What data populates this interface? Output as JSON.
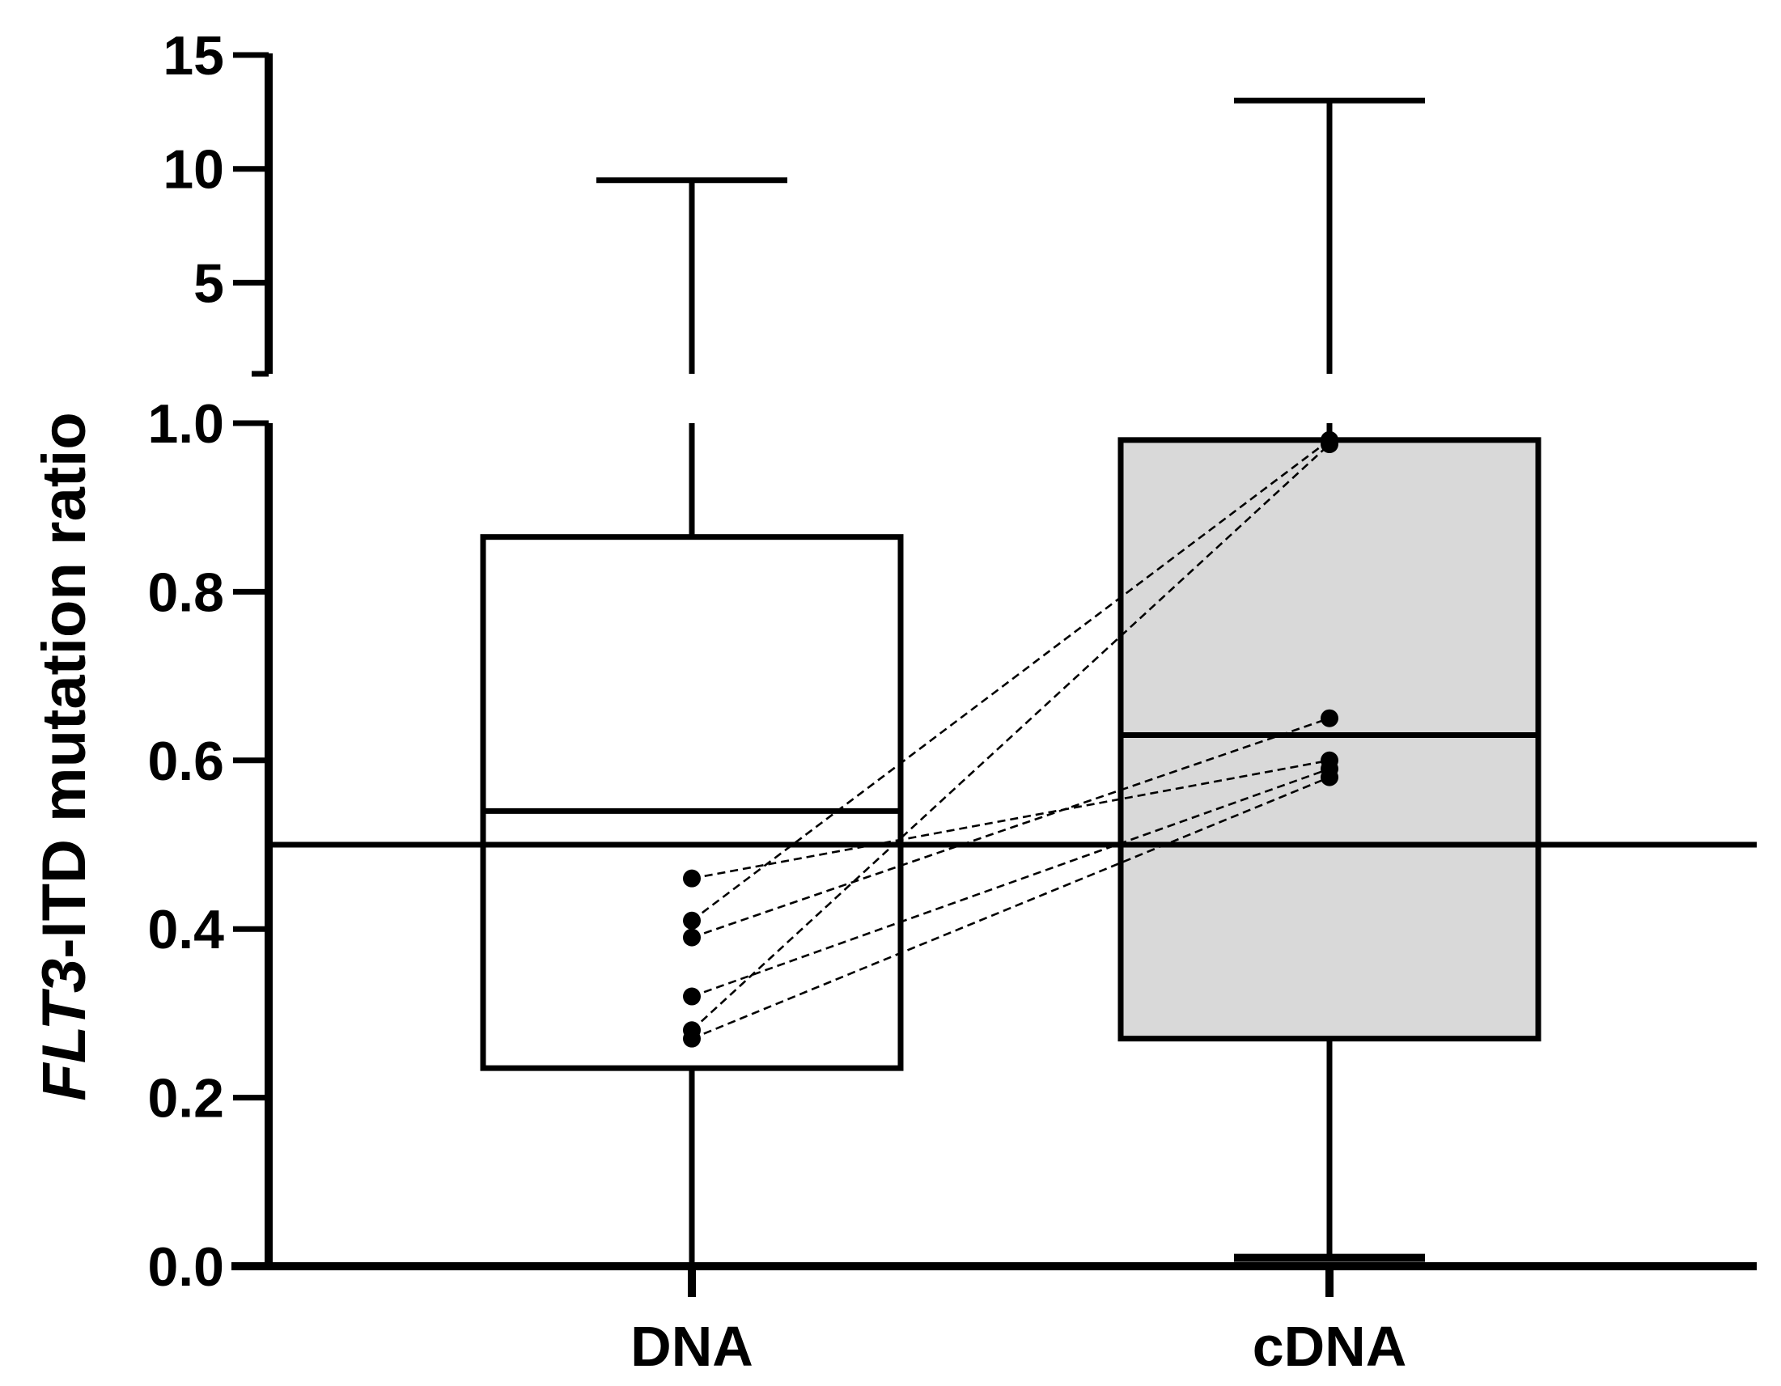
{
  "chart_data": {
    "type": "box",
    "ylabel_italic": "FLT3",
    "ylabel_rest": "-ITD mutation ratio",
    "xlabel": "",
    "categories": [
      "DNA",
      "cDNA"
    ],
    "y_axis": {
      "segmented": true,
      "lower_segment": {
        "range": [
          0.0,
          1.0
        ],
        "ticks": [
          "0.0",
          "0.2",
          "0.4",
          "0.6",
          "0.8",
          "1.0"
        ]
      },
      "upper_segment": {
        "range": [
          1.0,
          15
        ],
        "ticks": [
          "5",
          "10",
          "15"
        ]
      }
    },
    "boxes": [
      {
        "name": "DNA",
        "min": 0.0,
        "q1": 0.235,
        "median": 0.54,
        "q3": 0.865,
        "max": 9.5,
        "fill": "#ffffff"
      },
      {
        "name": "cDNA",
        "min": 0.01,
        "q1": 0.27,
        "median": 0.63,
        "q3": 0.98,
        "max": 13,
        "fill": "#d9d9d9"
      }
    ],
    "paired_points": [
      {
        "DNA": 0.46,
        "cDNA": 0.6
      },
      {
        "DNA": 0.41,
        "cDNA": 0.98
      },
      {
        "DNA": 0.39,
        "cDNA": 0.65
      },
      {
        "DNA": 0.32,
        "cDNA": 0.59
      },
      {
        "DNA": 0.28,
        "cDNA": 0.975
      },
      {
        "DNA": 0.27,
        "cDNA": 0.58
      }
    ],
    "reference_line": 0.5,
    "grid": false,
    "legend": "none"
  }
}
